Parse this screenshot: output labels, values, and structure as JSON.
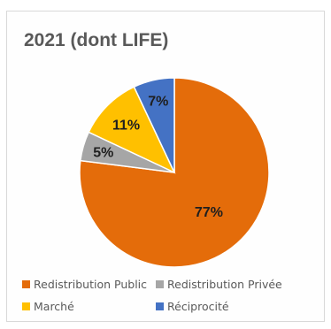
{
  "chart_data": {
    "type": "pie",
    "title": "2021 (dont LIFE)",
    "categories": [
      "Redistribution Public",
      "Redistribution Privée",
      "Marché",
      "Réciprocité"
    ],
    "values": [
      77,
      5,
      11,
      7
    ],
    "value_labels": [
      "77%",
      "5%",
      "11%",
      "7%"
    ],
    "colors": [
      "#e46c0a",
      "#a6a6a6",
      "#ffc000",
      "#4472c4"
    ],
    "legend_position": "bottom"
  }
}
